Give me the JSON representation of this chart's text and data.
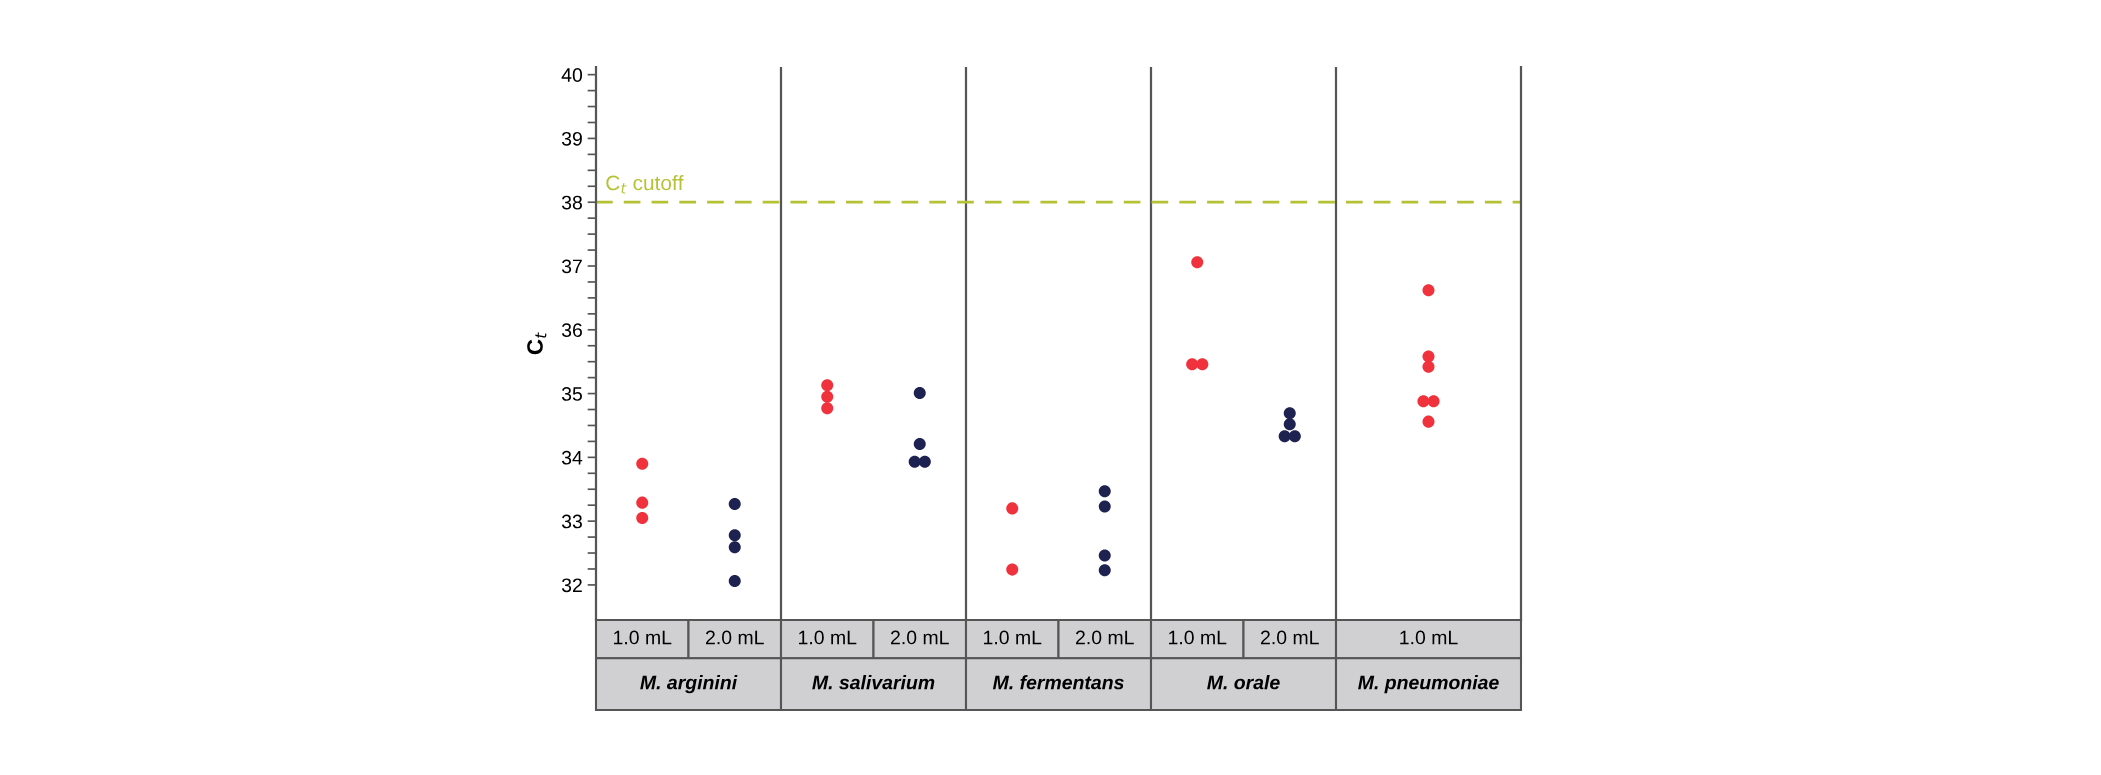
{
  "chart_data": {
    "type": "scatter",
    "ylabel": "C$_{t}$",
    "categories": [
      "1.0 mL",
      "2.0 mL",
      "1.0 mL",
      "2.0 mL",
      "1.0 mL",
      "2.0 mL",
      "1.0 mL",
      "2.0 mL",
      "1.0 mL"
    ],
    "annotations": [
      "M. arginini",
      "M. salivarium",
      "M. fermentans",
      "M. orale",
      "M. pneumoniae"
    ],
    "series": [
      {
        "color": "#f0323c",
        "values": [
          33.9,
          null,
          35.13,
          null,
          33.2,
          null,
          37.06,
          null,
          36.62
        ]
      },
      {
        "color": "#f0323c",
        "values": [
          33.29,
          null,
          34.95,
          null,
          32.24,
          null,
          35.46,
          null,
          35.58
        ]
      },
      {
        "color": "#f0323c",
        "values": [
          33.05,
          null,
          34.77,
          null,
          null,
          null,
          35.46,
          null,
          35.42
        ]
      },
      {
        "color": "#f0323c",
        "values": [
          null,
          null,
          null,
          null,
          null,
          null,
          null,
          null,
          34.88
        ]
      },
      {
        "color": "#f0323c",
        "values": [
          null,
          null,
          null,
          null,
          null,
          null,
          null,
          null,
          34.88
        ]
      },
      {
        "color": "#f0323c",
        "values": [
          null,
          null,
          null,
          null,
          null,
          null,
          null,
          null,
          34.56
        ]
      },
      {
        "color": "#1e2250",
        "values": [
          null,
          33.27,
          null,
          35.01,
          null,
          33.47,
          null,
          34.69,
          null
        ]
      },
      {
        "color": "#1e2250",
        "values": [
          null,
          32.78,
          null,
          34.21,
          null,
          33.23,
          null,
          34.52,
          null
        ]
      },
      {
        "color": "#1e2250",
        "values": [
          null,
          32.59,
          null,
          33.93,
          null,
          32.46,
          null,
          34.33,
          null
        ]
      },
      {
        "color": "#1e2250",
        "values": [
          null,
          32.06,
          null,
          33.93,
          null,
          32.23,
          null,
          34.33,
          null
        ]
      }
    ],
    "ylim": [
      31.45,
      40.12
    ],
    "yticks": [
      32,
      {
        "value": 32.25,
        "label": null
      },
      {
        "value": 32.5,
        "label": null
      },
      {
        "value": 32.75,
        "label": null
      },
      33,
      {
        "value": 33.25,
        "label": null
      },
      {
        "value": 33.5,
        "label": null
      },
      {
        "value": 33.75,
        "label": null
      },
      34,
      {
        "value": 34.25,
        "label": null
      },
      {
        "value": 34.5,
        "label": null
      },
      {
        "value": 34.75,
        "label": null
      },
      35,
      {
        "value": 35.25,
        "label": null
      },
      {
        "value": 35.5,
        "label": null
      },
      {
        "value": 35.75,
        "label": null
      },
      36,
      {
        "value": 36.25,
        "label": null
      },
      {
        "value": 36.5,
        "label": null
      },
      {
        "value": 36.75,
        "label": null
      },
      37,
      {
        "value": 37.25,
        "label": null
      },
      {
        "value": 37.5,
        "label": null
      },
      {
        "value": 37.75,
        "label": null
      },
      38,
      {
        "value": 38.25,
        "label": null
      },
      {
        "value": 38.5,
        "label": null
      },
      {
        "value": 38.75,
        "label": null
      },
      39,
      {
        "value": 39.25,
        "label": null
      },
      {
        "value": 39.5,
        "label": null
      },
      {
        "value": 39.75,
        "label": null
      },
      40
    ],
    "ref_lines": [
      {
        "axis": "y",
        "value": 38,
        "label": "C$_{t}$ cutoff",
        "color": "#b5c234",
        "line_style": "dashed"
      }
    ],
    "marker": "circle",
    "grid": false,
    "legend": false
  }
}
